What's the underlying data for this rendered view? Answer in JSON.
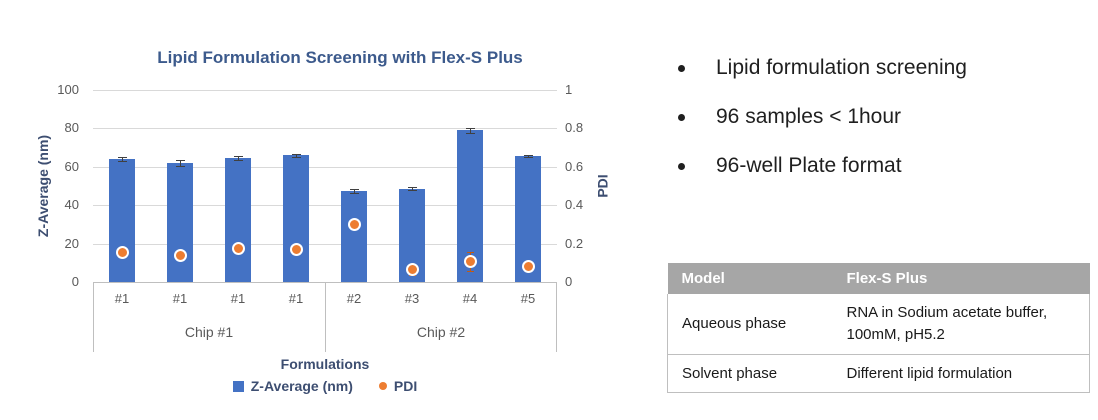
{
  "chart_data": {
    "type": "bar",
    "title": "Lipid Formulation Screening with Flex-S Plus",
    "categories": [
      "#1",
      "#1",
      "#1",
      "#1",
      "#2",
      "#3",
      "#4",
      "#5"
    ],
    "category_groups": [
      {
        "label": "Chip #1",
        "span": 4
      },
      {
        "label": "Chip #2",
        "span": 4
      }
    ],
    "series": [
      {
        "name": "Z-Average (nm)",
        "type": "bar",
        "axis": "left",
        "color": "#4472C4",
        "values": [
          64,
          62,
          64.5,
          66,
          47.5,
          48.5,
          79,
          65.5
        ],
        "errors": [
          1,
          1.5,
          1,
          0.7,
          1,
          0.8,
          1.3,
          0.6
        ]
      },
      {
        "name": "PDI",
        "type": "scatter",
        "axis": "right",
        "color": "#ED7D31",
        "values": [
          0.155,
          0.14,
          0.175,
          0.17,
          0.3,
          0.065,
          0.105,
          0.08
        ],
        "errors": [
          0.018,
          0.02,
          0.015,
          0.012,
          0.02,
          0.03,
          0.05,
          0.022
        ]
      }
    ],
    "xlabel": "Formulations",
    "ylabel_left": "Z-Average (nm)",
    "ylabel_right": "PDI",
    "ylim_left": [
      0,
      100
    ],
    "ylim_right": [
      0,
      1
    ],
    "yticks_left": [
      "100",
      "80",
      "60",
      "40",
      "20",
      "0"
    ],
    "yticks_right": [
      "1",
      "0.8",
      "0.6",
      "0.4",
      "0.2",
      "0"
    ],
    "grid": true,
    "legend_position": "bottom"
  },
  "bullets": {
    "items": [
      "Lipid formulation screening",
      "96 samples < 1hour",
      "96-well Plate format"
    ]
  },
  "table": {
    "header": {
      "col1": "Model",
      "col2": "Flex-S Plus"
    },
    "rows": [
      {
        "col1": "Aqueous phase",
        "col2": "RNA in Sodium acetate buffer, 100mM, pH5.2"
      },
      {
        "col1": "Solvent phase",
        "col2": "Different lipid formulation"
      }
    ]
  },
  "colors": {
    "bar_blue": "#4472C4",
    "pdi_orange": "#ED7D31",
    "gridline": "#D9D9D9",
    "tick_text": "#595959",
    "title_text": "#3C5A8C",
    "axis_label_text": "#3D4E71",
    "table_header_bg": "#A6A6A6",
    "table_header_text": "#FFFFFF",
    "table_border": "#BFBFBF",
    "body_text": "#1F1F1F"
  }
}
